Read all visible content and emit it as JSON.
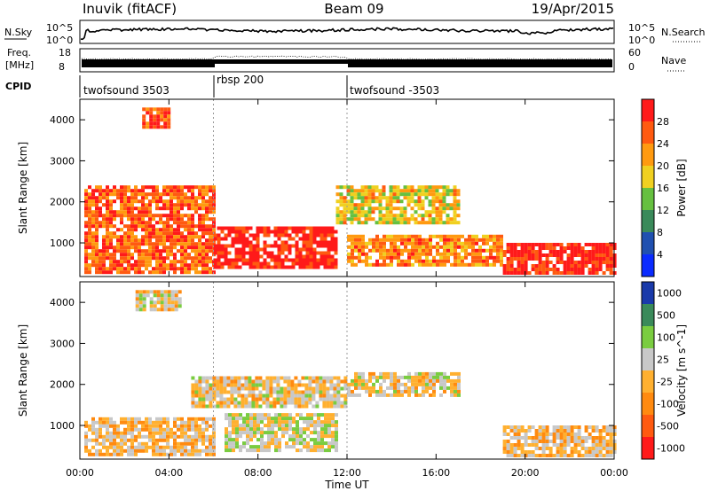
{
  "header": {
    "station": "Inuvik (fitACF)",
    "beam": "Beam 09",
    "date": "19/Apr/2015"
  },
  "noise_panel": {
    "left_label": "N.Sky",
    "right_label": "N.Search",
    "ticks": [
      "10^5",
      "10^0"
    ]
  },
  "freq_panel": {
    "left_label_1": "Freq.",
    "left_label_2": "[MHz]",
    "left_ticks": [
      "18",
      "8"
    ],
    "right_ticks": [
      "60",
      "0"
    ],
    "right_label": "Nave"
  },
  "cpid": {
    "label": "CPID",
    "segments": [
      "twofsound 3503",
      "rbsp 200",
      "twofsound -3503"
    ]
  },
  "power_panel": {
    "ylabel": "Slant Range [km]",
    "yticks": [
      "4000",
      "3000",
      "2000",
      "1000"
    ],
    "colorbar_label": "Power [dB]",
    "colorbar_ticks": [
      "28",
      "24",
      "20",
      "16",
      "12",
      "8",
      "4"
    ],
    "colors": [
      "#0a2bff",
      "#2050b0",
      "#3a8a5a",
      "#66c040",
      "#f0d020",
      "#ff9a10",
      "#ff5a10",
      "#ff1a1a"
    ]
  },
  "velocity_panel": {
    "ylabel": "Slant Range [km]",
    "yticks": [
      "4000",
      "3000",
      "2000",
      "1000"
    ],
    "colorbar_label": "Velocity [m s^-1]",
    "colorbar_ticks": [
      "1000",
      "500",
      "100",
      "25",
      "-25",
      "-100",
      "-500",
      "-1000"
    ],
    "colors": [
      "#1a3aaa",
      "#3a8a5a",
      "#7acc40",
      "#c8c8c8",
      "#ffb030",
      "#ff8a10",
      "#ff5a10",
      "#ff1a1a"
    ]
  },
  "xaxis": {
    "label": "Time UT",
    "ticks": [
      "00:00",
      "04:00",
      "08:00",
      "12:00",
      "16:00",
      "20:00",
      "00:00"
    ]
  },
  "chart_data": {
    "type": "heatmap",
    "title": "Inuvik (fitACF) Beam 09 19/Apr/2015",
    "xlabel": "Time UT",
    "ylabel": "Slant Range [km]",
    "x_range_hours": [
      0,
      24
    ],
    "y_range_km": [
      180,
      4500
    ],
    "panels": [
      {
        "name": "Power [dB]",
        "range": [
          0,
          30
        ],
        "regions": [
          {
            "t": [
              0.2,
              6.0
            ],
            "r": [
              300,
              2400
            ],
            "value": 24
          },
          {
            "t": [
              6.0,
              11.5
            ],
            "r": [
              400,
              1400
            ],
            "value": 28
          },
          {
            "t": [
              11.5,
              17.0
            ],
            "r": [
              1500,
              2400
            ],
            "value": 18
          },
          {
            "t": [
              12.0,
              19.0
            ],
            "r": [
              500,
              1200
            ],
            "value": 22
          },
          {
            "t": [
              19.0,
              24.0
            ],
            "r": [
              250,
              1000
            ],
            "value": 28
          },
          {
            "t": [
              2.8,
              4.0
            ],
            "r": [
              3800,
              4300
            ],
            "value": 26
          }
        ]
      },
      {
        "name": "Velocity [m s^-1]",
        "range": [
          -1000,
          1000
        ],
        "regions": [
          {
            "t": [
              0.2,
              6.0
            ],
            "r": [
              300,
              1200
            ],
            "value": -100
          },
          {
            "t": [
              6.5,
              11.5
            ],
            "r": [
              400,
              1300
            ],
            "value": 100
          },
          {
            "t": [
              5.0,
              12.0
            ],
            "r": [
              1500,
              2200
            ],
            "value": 0
          },
          {
            "t": [
              12.0,
              17.0
            ],
            "r": [
              1700,
              2300
            ],
            "value": 0
          },
          {
            "t": [
              19.0,
              24.0
            ],
            "r": [
              250,
              1000
            ],
            "value": -100
          },
          {
            "t": [
              2.5,
              4.5
            ],
            "r": [
              3800,
              4300
            ],
            "value": 0
          }
        ]
      }
    ]
  }
}
